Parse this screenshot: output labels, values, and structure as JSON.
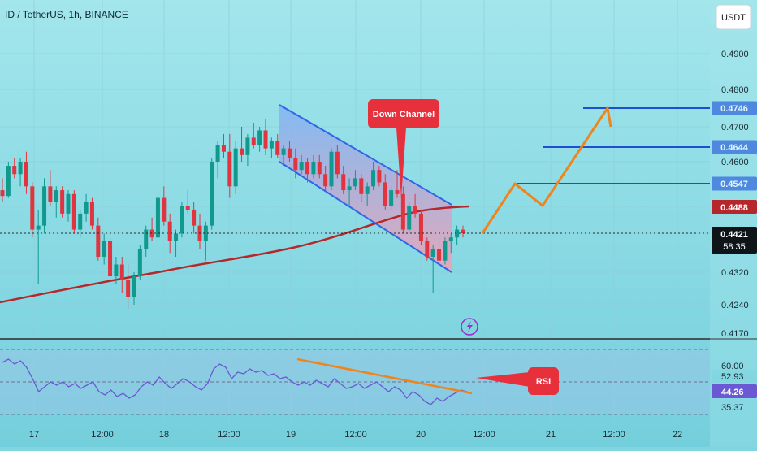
{
  "header": {
    "title": "ID / TetherUS, 1h, BINANCE",
    "currency": "USDT"
  },
  "colors": {
    "bg_top": "#9be3ea",
    "bg_bottom": "#7ad1de",
    "up": "#11998e",
    "down": "#e0353f",
    "ma": "#b5272b",
    "channel_line": "#2f66e8",
    "channel_fill_top": "#7fb4f5",
    "channel_fill_bottom": "#f2a0b4",
    "projection": "#f0841c",
    "level_line": "#1f4fd1",
    "rsi_line": "#6b59d3",
    "label_red": "#e6313d",
    "label_blue": "#2156d9",
    "label_dark": "#0f1418"
  },
  "annotations": {
    "down_channel": "Down Channel",
    "rsi": "RSI"
  },
  "price_axis": {
    "ticks": [
      "0.4900",
      "0.4800",
      "0.4700",
      "0.4600",
      "0.4320",
      "0.4240",
      "0.4170"
    ],
    "levels": [
      {
        "label": "0.4746",
        "price": 0.4746
      },
      {
        "label": "0.4644",
        "price": 0.4644
      },
      {
        "label": "0.4547",
        "price": 0.4547
      }
    ],
    "ma_tag": "0.4488",
    "last_price": "0.4421",
    "countdown": "58:35"
  },
  "rsi_axis": {
    "ticks": [
      "60.00",
      "35.37"
    ],
    "val_a": "52.93",
    "val_b": "44.26"
  },
  "time_axis": {
    "ticks": [
      "17",
      "12:00",
      "18",
      "12:00",
      "19",
      "12:00",
      "20",
      "12:00",
      "21",
      "12:00",
      "22"
    ]
  },
  "chart_data": {
    "type": "candlestick",
    "title": "ID / TetherUS, 1h, BINANCE",
    "quote": "USDT",
    "ylim": [
      0.417,
      0.5
    ],
    "last_price": 0.4421,
    "moving_average_value": 0.4488,
    "resistance_levels": [
      0.4547,
      0.4644,
      0.4746
    ],
    "candles": [
      [
        0.453,
        0.456,
        0.45,
        0.4515
      ],
      [
        0.4515,
        0.46,
        0.451,
        0.459
      ],
      [
        0.459,
        0.461,
        0.456,
        0.457
      ],
      [
        0.457,
        0.461,
        0.454,
        0.46
      ],
      [
        0.46,
        0.463,
        0.452,
        0.454
      ],
      [
        0.454,
        0.455,
        0.441,
        0.443
      ],
      [
        0.443,
        0.448,
        0.429,
        0.444
      ],
      [
        0.444,
        0.456,
        0.442,
        0.454
      ],
      [
        0.454,
        0.458,
        0.449,
        0.45
      ],
      [
        0.45,
        0.454,
        0.446,
        0.453
      ],
      [
        0.453,
        0.454,
        0.446,
        0.447
      ],
      [
        0.447,
        0.453,
        0.445,
        0.452
      ],
      [
        0.452,
        0.453,
        0.442,
        0.443
      ],
      [
        0.443,
        0.448,
        0.441,
        0.447
      ],
      [
        0.447,
        0.452,
        0.445,
        0.45
      ],
      [
        0.45,
        0.451,
        0.443,
        0.444
      ],
      [
        0.444,
        0.446,
        0.435,
        0.436
      ],
      [
        0.436,
        0.442,
        0.434,
        0.44
      ],
      [
        0.44,
        0.441,
        0.43,
        0.431
      ],
      [
        0.431,
        0.436,
        0.429,
        0.434
      ],
      [
        0.434,
        0.436,
        0.427,
        0.43
      ],
      [
        0.43,
        0.434,
        0.423,
        0.426
      ],
      [
        0.426,
        0.432,
        0.424,
        0.431
      ],
      [
        0.431,
        0.439,
        0.43,
        0.438
      ],
      [
        0.438,
        0.444,
        0.436,
        0.443
      ],
      [
        0.443,
        0.446,
        0.44,
        0.441
      ],
      [
        0.441,
        0.452,
        0.44,
        0.451
      ],
      [
        0.451,
        0.454,
        0.444,
        0.445
      ],
      [
        0.445,
        0.447,
        0.437,
        0.44
      ],
      [
        0.44,
        0.443,
        0.436,
        0.442
      ],
      [
        0.442,
        0.45,
        0.441,
        0.449
      ],
      [
        0.449,
        0.453,
        0.447,
        0.448
      ],
      [
        0.448,
        0.45,
        0.442,
        0.444
      ],
      [
        0.444,
        0.447,
        0.438,
        0.44
      ],
      [
        0.44,
        0.445,
        0.435,
        0.444
      ],
      [
        0.444,
        0.461,
        0.443,
        0.46
      ],
      [
        0.46,
        0.466,
        0.456,
        0.465
      ],
      [
        0.465,
        0.468,
        0.461,
        0.463
      ],
      [
        0.463,
        0.468,
        0.451,
        0.454
      ],
      [
        0.454,
        0.466,
        0.452,
        0.464
      ],
      [
        0.464,
        0.47,
        0.46,
        0.462
      ],
      [
        0.462,
        0.468,
        0.459,
        0.467
      ],
      [
        0.467,
        0.471,
        0.464,
        0.465
      ],
      [
        0.465,
        0.47,
        0.463,
        0.469
      ],
      [
        0.469,
        0.472,
        0.462,
        0.464
      ],
      [
        0.464,
        0.467,
        0.461,
        0.466
      ],
      [
        0.466,
        0.468,
        0.461,
        0.462
      ],
      [
        0.462,
        0.465,
        0.459,
        0.464
      ],
      [
        0.464,
        0.466,
        0.46,
        0.461
      ],
      [
        0.461,
        0.464,
        0.456,
        0.458
      ],
      [
        0.458,
        0.462,
        0.457,
        0.46
      ],
      [
        0.46,
        0.461,
        0.455,
        0.457
      ],
      [
        0.457,
        0.462,
        0.456,
        0.46
      ],
      [
        0.46,
        0.462,
        0.456,
        0.457
      ],
      [
        0.457,
        0.459,
        0.453,
        0.454
      ],
      [
        0.454,
        0.464,
        0.453,
        0.463
      ],
      [
        0.463,
        0.465,
        0.456,
        0.457
      ],
      [
        0.457,
        0.459,
        0.452,
        0.453
      ],
      [
        0.453,
        0.456,
        0.449,
        0.454
      ],
      [
        0.454,
        0.458,
        0.453,
        0.456
      ],
      [
        0.456,
        0.457,
        0.45,
        0.452
      ],
      [
        0.452,
        0.455,
        0.449,
        0.454
      ],
      [
        0.454,
        0.46,
        0.453,
        0.458
      ],
      [
        0.458,
        0.459,
        0.454,
        0.455
      ],
      [
        0.455,
        0.457,
        0.448,
        0.449
      ],
      [
        0.449,
        0.454,
        0.448,
        0.453
      ],
      [
        0.453,
        0.458,
        0.451,
        0.452
      ],
      [
        0.452,
        0.454,
        0.442,
        0.443
      ],
      [
        0.443,
        0.45,
        0.442,
        0.449
      ],
      [
        0.449,
        0.452,
        0.446,
        0.447
      ],
      [
        0.447,
        0.448,
        0.439,
        0.44
      ],
      [
        0.44,
        0.441,
        0.435,
        0.436
      ],
      [
        0.436,
        0.439,
        0.427,
        0.438
      ],
      [
        0.438,
        0.44,
        0.434,
        0.435
      ],
      [
        0.435,
        0.441,
        0.434,
        0.44
      ],
      [
        0.44,
        0.442,
        0.437,
        0.441
      ],
      [
        0.441,
        0.444,
        0.439,
        0.443
      ],
      [
        0.443,
        0.444,
        0.441,
        0.4421
      ]
    ],
    "projection_path": [
      0.4421,
      0.4547,
      0.449,
      0.4746,
      0.47
    ],
    "rsi": {
      "levels": [
        60.0,
        35.37
      ],
      "value_a": 52.93,
      "value_b": 44.26,
      "series": [
        62,
        64,
        61,
        63,
        59,
        52,
        44,
        47,
        50,
        48,
        50,
        47,
        49,
        46,
        48,
        50,
        44,
        42,
        45,
        41,
        43,
        40,
        42,
        47,
        50,
        48,
        53,
        49,
        46,
        49,
        52,
        50,
        47,
        45,
        49,
        58,
        61,
        59,
        52,
        56,
        55,
        58,
        56,
        57,
        54,
        55,
        52,
        53,
        50,
        48,
        50,
        48,
        51,
        49,
        47,
        52,
        49,
        46,
        47,
        49,
        46,
        48,
        50,
        47,
        44,
        47,
        45,
        40,
        44,
        42,
        38,
        36,
        40,
        38,
        41,
        43,
        45,
        44
      ]
    }
  }
}
